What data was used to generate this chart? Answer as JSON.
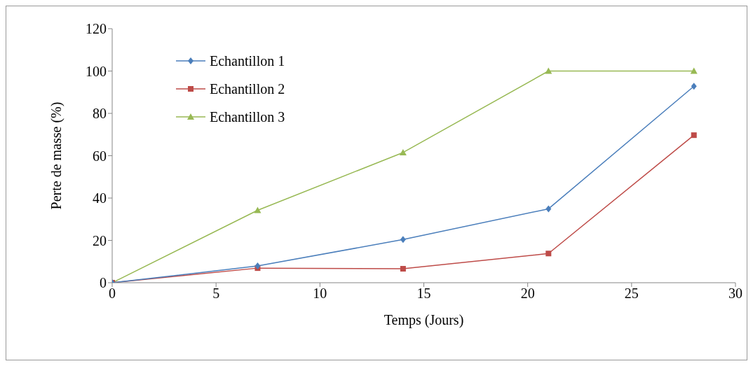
{
  "chart_data": {
    "type": "line",
    "xlabel": "Temps (Jours)",
    "ylabel": "Perte de masse (%)",
    "x": [
      0,
      7,
      14,
      21,
      28
    ],
    "series": [
      {
        "name": "Echantillon 1",
        "color": "#4a7ebb",
        "marker": "diamond",
        "values": [
          0,
          7.9,
          20.4,
          34.9,
          92.8
        ]
      },
      {
        "name": "Echantillon 2",
        "color": "#be4b48",
        "marker": "square",
        "values": [
          0,
          6.9,
          6.6,
          13.8,
          69.7
        ]
      },
      {
        "name": "Echantillon 3",
        "color": "#98b954",
        "marker": "triangle",
        "values": [
          0,
          34.2,
          61.5,
          100,
          100
        ]
      }
    ],
    "xlim": [
      0,
      30
    ],
    "xticks": [
      0,
      5,
      10,
      15,
      20,
      25,
      30
    ],
    "ylim": [
      0,
      120
    ],
    "yticks": [
      0,
      20,
      40,
      60,
      80,
      100,
      120
    ],
    "grid": false,
    "legend": "top left",
    "line_style": "solid"
  }
}
